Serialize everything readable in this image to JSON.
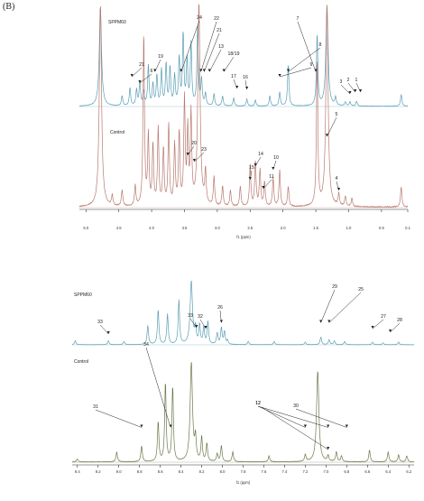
{
  "panel_label": "(B)",
  "chart_data": [
    {
      "type": "line",
      "panel": "top",
      "xlabel": "f1 (ppm)",
      "x_reversed": true,
      "xlim": [
        5.1,
        0.1
      ],
      "tick_labels": [
        "5.0",
        "4.5",
        "4.0",
        "3.5",
        "3.0",
        "2.5",
        "2.0",
        "1.5",
        "1.0",
        "0.5",
        "0.1"
      ],
      "tick_values": [
        5.0,
        4.5,
        4.0,
        3.5,
        3.0,
        2.5,
        2.0,
        1.5,
        1.0,
        0.5,
        0.1
      ],
      "grid": false,
      "series": [
        {
          "name": "SPPM60",
          "color": "#5a9fb5",
          "peaks": [
            [
              4.78,
              1.0
            ],
            [
              4.45,
              0.1
            ],
            [
              4.33,
              0.18
            ],
            [
              4.23,
              0.16
            ],
            [
              4.18,
              0.24
            ],
            [
              4.12,
              0.14
            ],
            [
              4.05,
              0.4
            ],
            [
              3.98,
              0.22
            ],
            [
              3.92,
              0.3
            ],
            [
              3.85,
              0.36
            ],
            [
              3.78,
              0.42
            ],
            [
              3.72,
              0.38
            ],
            [
              3.65,
              0.3
            ],
            [
              3.58,
              0.48
            ],
            [
              3.52,
              0.72
            ],
            [
              3.46,
              0.45
            ],
            [
              3.4,
              0.62
            ],
            [
              3.3,
              0.78
            ],
            [
              3.24,
              0.26
            ],
            [
              3.18,
              0.12
            ],
            [
              3.05,
              0.12
            ],
            [
              2.92,
              0.1
            ],
            [
              2.75,
              0.08
            ],
            [
              2.55,
              0.07
            ],
            [
              2.42,
              0.06
            ],
            [
              2.2,
              0.1
            ],
            [
              2.05,
              0.14
            ],
            [
              1.92,
              0.42
            ],
            [
              1.48,
              0.72
            ],
            [
              1.33,
              1.0
            ],
            [
              1.2,
              0.08
            ],
            [
              1.05,
              0.04
            ],
            [
              0.98,
              0.04
            ],
            [
              0.88,
              0.05
            ],
            [
              0.2,
              0.12
            ]
          ]
        },
        {
          "name": "Control",
          "color": "#b87a70",
          "peaks": [
            [
              4.78,
              1.0
            ],
            [
              4.6,
              0.05
            ],
            [
              4.45,
              0.08
            ],
            [
              4.25,
              0.1
            ],
            [
              4.12,
              0.85
            ],
            [
              4.05,
              0.34
            ],
            [
              3.98,
              0.3
            ],
            [
              3.9,
              0.38
            ],
            [
              3.82,
              0.28
            ],
            [
              3.74,
              0.4
            ],
            [
              3.65,
              0.3
            ],
            [
              3.58,
              0.36
            ],
            [
              3.5,
              0.52
            ],
            [
              3.45,
              0.36
            ],
            [
              3.4,
              0.44
            ],
            [
              3.28,
              1.0
            ],
            [
              3.18,
              0.16
            ],
            [
              3.05,
              0.14
            ],
            [
              2.92,
              0.1
            ],
            [
              2.8,
              0.08
            ],
            [
              2.65,
              0.1
            ],
            [
              2.5,
              0.2
            ],
            [
              2.42,
              0.22
            ],
            [
              2.35,
              0.18
            ],
            [
              2.28,
              0.12
            ],
            [
              2.15,
              0.14
            ],
            [
              2.05,
              0.18
            ],
            [
              1.92,
              0.1
            ],
            [
              1.48,
              0.72
            ],
            [
              1.33,
              1.0
            ],
            [
              1.15,
              0.06
            ],
            [
              1.05,
              0.05
            ],
            [
              0.95,
              0.04
            ],
            [
              0.2,
              0.1
            ]
          ]
        }
      ],
      "annotations": [
        {
          "label": "SPPM60",
          "series": "SPPM60"
        },
        {
          "label": "Control",
          "series": "Control"
        },
        {
          "label": "24",
          "x": 3.55,
          "series": "SPPM60"
        },
        {
          "label": "22",
          "x": 3.25,
          "series": "SPPM60"
        },
        {
          "label": "21",
          "x": 3.2,
          "series": "SPPM60"
        },
        {
          "label": "13",
          "x": 3.12,
          "series": "SPPM60"
        },
        {
          "label": "18/19",
          "x": 2.9,
          "series": "SPPM60"
        },
        {
          "label": "17",
          "x": 2.7,
          "series": "SPPM60"
        },
        {
          "label": "16",
          "x": 2.55,
          "series": "SPPM60"
        },
        {
          "label": "19",
          "x": 3.95,
          "series": "SPPM60"
        },
        {
          "label": "21",
          "x": 4.3,
          "series": "SPPM60"
        },
        {
          "label": "6",
          "x": 4.18,
          "series": "SPPM60"
        },
        {
          "label": "7",
          "x": 1.5,
          "series": "SPPM60"
        },
        {
          "label": "8",
          "x": 1.92,
          "series": "SPPM60"
        },
        {
          "label": "9",
          "x": 2.05,
          "series": "SPPM60"
        },
        {
          "label": "3",
          "x": 0.98,
          "series": "SPPM60"
        },
        {
          "label": "2",
          "x": 0.9,
          "series": "SPPM60"
        },
        {
          "label": "1",
          "x": 0.82,
          "series": "SPPM60"
        },
        {
          "label": "5",
          "x": 1.33,
          "series": "Control"
        },
        {
          "label": "4",
          "x": 1.15,
          "series": "Control"
        },
        {
          "label": "20",
          "x": 3.45,
          "series": "Control"
        },
        {
          "label": "23",
          "x": 3.35,
          "series": "Control"
        },
        {
          "label": "14",
          "x": 2.42,
          "series": "Control"
        },
        {
          "label": "15",
          "x": 2.5,
          "series": "Control"
        },
        {
          "label": "11",
          "x": 2.3,
          "series": "Control"
        },
        {
          "label": "10",
          "x": 2.15,
          "series": "Control"
        }
      ]
    },
    {
      "type": "line",
      "panel": "bottom",
      "xlabel": "f1 (ppm)",
      "x_reversed": true,
      "xlim": [
        9.45,
        6.15
      ],
      "tick_labels": [
        "9.4",
        "9.2",
        "9.0",
        "8.8",
        "8.6",
        "8.4",
        "8.2",
        "8.0",
        "7.8",
        "7.6",
        "7.4",
        "7.2",
        "7.0",
        "6.8",
        "6.6",
        "6.4",
        "6.2"
      ],
      "tick_values": [
        9.4,
        9.2,
        9.0,
        8.8,
        8.6,
        8.4,
        8.2,
        8.0,
        7.8,
        7.6,
        7.4,
        7.2,
        7.0,
        6.8,
        6.6,
        6.4,
        6.2
      ],
      "grid": false,
      "series": [
        {
          "name": "SPPM60",
          "color": "#5a9fb5",
          "peaks": [
            [
              9.42,
              0.06
            ],
            [
              9.1,
              0.06
            ],
            [
              8.95,
              0.05
            ],
            [
              8.72,
              0.3
            ],
            [
              8.62,
              0.55
            ],
            [
              8.53,
              0.48
            ],
            [
              8.42,
              0.7
            ],
            [
              8.3,
              1.0
            ],
            [
              8.26,
              0.24
            ],
            [
              8.22,
              0.3
            ],
            [
              8.18,
              0.26
            ],
            [
              8.14,
              0.36
            ],
            [
              8.05,
              0.18
            ],
            [
              8.01,
              0.26
            ],
            [
              7.98,
              0.2
            ],
            [
              7.95,
              0.06
            ],
            [
              7.75,
              0.05
            ],
            [
              7.5,
              0.05
            ],
            [
              7.2,
              0.04
            ],
            [
              6.92,
              0.06
            ],
            [
              6.82,
              0.05
            ],
            [
              6.55,
              0.04
            ],
            [
              6.45,
              0.03
            ],
            [
              6.3,
              0.04
            ],
            [
              7.05,
              0.12
            ],
            [
              6.97,
              0.08
            ]
          ]
        },
        {
          "name": "Control",
          "color": "#6b7a4a",
          "peaks": [
            [
              9.4,
              0.03
            ],
            [
              9.02,
              0.1
            ],
            [
              8.78,
              0.16
            ],
            [
              8.62,
              0.4
            ],
            [
              8.55,
              0.8
            ],
            [
              8.48,
              0.76
            ],
            [
              8.3,
              1.0
            ],
            [
              8.26,
              0.22
            ],
            [
              8.2,
              0.24
            ],
            [
              8.15,
              0.18
            ],
            [
              8.05,
              0.08
            ],
            [
              8.01,
              0.16
            ],
            [
              7.9,
              0.1
            ],
            [
              7.55,
              0.06
            ],
            [
              7.2,
              0.07
            ],
            [
              6.98,
              0.06
            ],
            [
              7.08,
              0.92
            ],
            [
              6.9,
              0.1
            ],
            [
              6.85,
              0.06
            ],
            [
              6.58,
              0.12
            ],
            [
              6.4,
              0.1
            ],
            [
              6.3,
              0.07
            ],
            [
              6.22,
              0.06
            ]
          ]
        }
      ],
      "annotations": [
        {
          "label": "SPPM60",
          "series": "SPPM60"
        },
        {
          "label": "Control",
          "series": "Control"
        },
        {
          "label": "33",
          "x": 9.1,
          "series": "SPPM60"
        },
        {
          "label": "33",
          "x": 8.25,
          "series": "SPPM60"
        },
        {
          "label": "32",
          "x": 8.16,
          "series": "SPPM60"
        },
        {
          "label": "26",
          "x": 8.01,
          "series": "SPPM60"
        },
        {
          "label": "29",
          "x": 7.05,
          "series": "SPPM60"
        },
        {
          "label": "25",
          "x": 6.97,
          "series": "SPPM60"
        },
        {
          "label": "27",
          "x": 6.55,
          "series": "SPPM60"
        },
        {
          "label": "28",
          "x": 6.38,
          "series": "SPPM60"
        },
        {
          "label": "34",
          "x": 8.5,
          "series": "Control"
        },
        {
          "label": "31",
          "x": 8.78,
          "series": "Control"
        },
        {
          "label": "12",
          "x": 7.2,
          "series": "Control"
        },
        {
          "label": "12",
          "x": 6.98,
          "series": "Control"
        },
        {
          "label": "30",
          "x": 6.8,
          "series": "Control"
        }
      ]
    }
  ]
}
